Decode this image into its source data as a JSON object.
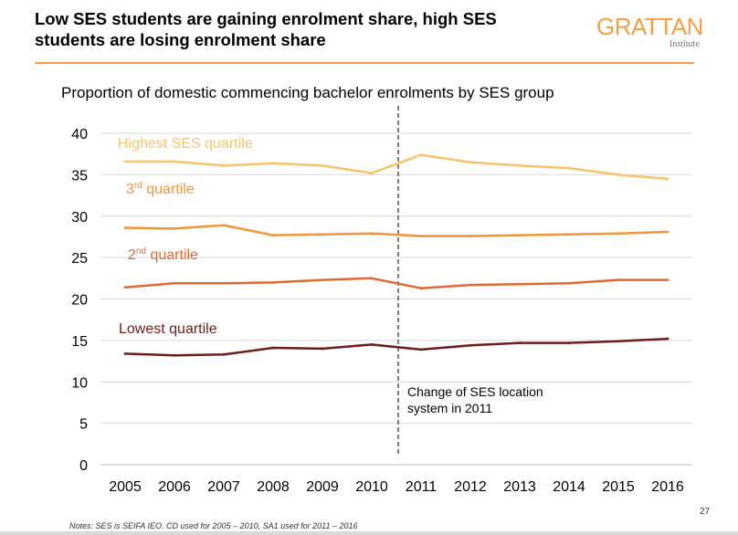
{
  "header": {
    "title": "Low SES students are gaining enrolment share, high SES students are losing enrolment share",
    "logo_word": "GRATTAN",
    "logo_sub": "Institute"
  },
  "colors": {
    "brand": "#f3a046",
    "highest": "#f7c46c",
    "third": "#f0953a",
    "second": "#dd6a36",
    "lowest": "#6b1e1c"
  },
  "chart_data": {
    "type": "line",
    "title": "Proportion of domestic commencing bachelor enrolments by SES group",
    "xlabel": "",
    "ylabel": "",
    "ylim": [
      0,
      40
    ],
    "yticks": [
      0,
      5,
      10,
      15,
      20,
      25,
      30,
      35,
      40
    ],
    "categories": [
      "2005",
      "2006",
      "2007",
      "2008",
      "2009",
      "2010",
      "2011",
      "2012",
      "2013",
      "2014",
      "2015",
      "2016"
    ],
    "grid": true,
    "series": [
      {
        "name": "Highest SES quartile",
        "label": "Highest SES quartile",
        "sup": "",
        "label_rest": "",
        "color": "#f7c46c",
        "values": [
          36.6,
          36.6,
          36.1,
          36.4,
          36.1,
          35.2,
          37.4,
          36.5,
          36.1,
          35.8,
          35.0,
          34.5
        ]
      },
      {
        "name": "3rd quartile",
        "label": "3",
        "sup": "rd",
        "label_rest": " quartile",
        "color": "#f0953a",
        "values": [
          28.6,
          28.5,
          28.9,
          27.7,
          27.8,
          27.9,
          27.6,
          27.6,
          27.7,
          27.8,
          27.9,
          28.1
        ]
      },
      {
        "name": "2nd quartile",
        "label": "2",
        "sup": "nd",
        "label_rest": " quartile",
        "color": "#dd6a36",
        "values": [
          21.4,
          21.9,
          21.9,
          22.0,
          22.3,
          22.5,
          21.3,
          21.7,
          21.8,
          21.9,
          22.3,
          22.3
        ]
      },
      {
        "name": "Lowest quartile",
        "label": "Lowest quartile",
        "sup": "",
        "label_rest": "",
        "color": "#6b1e1c",
        "values": [
          13.4,
          13.2,
          13.3,
          14.1,
          14.0,
          14.5,
          13.9,
          14.4,
          14.7,
          14.7,
          14.9,
          15.2
        ]
      }
    ],
    "annotation": {
      "line1": "Change of SES location",
      "line2": "system in 2011",
      "between": [
        "2010",
        "2011"
      ]
    }
  },
  "footer": {
    "note": "Notes: SES is SEIFA IEO. CD used for 2005 – 2010, SA1 used for 2011 – 2016",
    "page_number": "27"
  }
}
